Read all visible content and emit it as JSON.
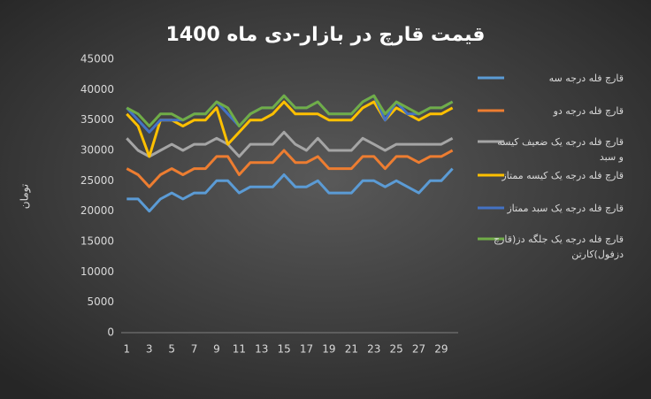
{
  "chart_data": {
    "type": "line",
    "title": "قیمت قارچ در بازار-دی ماه 1400",
    "y_label": "تومان",
    "categories": [
      1,
      null,
      3,
      null,
      5,
      null,
      7,
      null,
      9,
      null,
      11,
      null,
      13,
      null,
      15,
      null,
      17,
      null,
      19,
      null,
      21,
      null,
      23,
      null,
      25,
      null,
      27,
      null,
      29,
      null
    ],
    "ylim": [
      0,
      45000
    ],
    "yticks": [
      0,
      5000,
      10000,
      15000,
      20000,
      25000,
      30000,
      35000,
      40000,
      45000
    ],
    "grid": false,
    "legend": "right",
    "series": [
      {
        "name": "قارچ فله درجه سه",
        "color": "#5b9bd5",
        "values": [
          22000,
          22000,
          20000,
          22000,
          23000,
          22000,
          23000,
          23000,
          25000,
          25000,
          23000,
          24000,
          24000,
          24000,
          26000,
          24000,
          24000,
          25000,
          23000,
          23000,
          23000,
          25000,
          25000,
          24000,
          25000,
          24000,
          23000,
          25000,
          25000,
          27000
        ]
      },
      {
        "name": "قارچ فله درجه دو",
        "color": "#ed7d31",
        "values": [
          27000,
          26000,
          24000,
          26000,
          27000,
          26000,
          27000,
          27000,
          29000,
          29000,
          26000,
          28000,
          28000,
          28000,
          30000,
          28000,
          28000,
          29000,
          27000,
          27000,
          27000,
          29000,
          29000,
          27000,
          29000,
          29000,
          28000,
          29000,
          29000,
          30000
        ]
      },
      {
        "name": "قارچ فله درجه یک ضعیف کیسه و سبد",
        "color": "#a5a5a5",
        "values": [
          32000,
          30000,
          29000,
          30000,
          31000,
          30000,
          31000,
          31000,
          32000,
          31000,
          29000,
          31000,
          31000,
          31000,
          33000,
          31000,
          30000,
          32000,
          30000,
          30000,
          30000,
          32000,
          31000,
          30000,
          31000,
          31000,
          31000,
          31000,
          31000,
          32000
        ]
      },
      {
        "name": "قارچ فله درجه یک کیسه ممتاز",
        "color": "#ffc000",
        "values": [
          36000,
          34000,
          29000,
          35000,
          35000,
          34000,
          35000,
          35000,
          37000,
          31000,
          33000,
          35000,
          35000,
          36000,
          38000,
          36000,
          36000,
          36000,
          35000,
          35000,
          35000,
          37000,
          38000,
          35000,
          37000,
          36000,
          35000,
          36000,
          36000,
          37000
        ]
      },
      {
        "name": "قارچ فله درجه یک سبد ممتاز",
        "color": "#4472c4",
        "values": [
          37000,
          35000,
          33000,
          35000,
          35000,
          35000,
          36000,
          36000,
          38000,
          36000,
          34000,
          36000,
          37000,
          37000,
          39000,
          37000,
          37000,
          38000,
          36000,
          36000,
          36000,
          38000,
          39000,
          35000,
          38000,
          36000,
          36000,
          37000,
          37000,
          38000
        ]
      },
      {
        "name": "قارچ فله درجه یک جلگه دز(قارچ دزفول)کارتن",
        "color": "#70ad47",
        "values": [
          37000,
          36000,
          34000,
          36000,
          36000,
          35000,
          36000,
          36000,
          38000,
          37000,
          34000,
          36000,
          37000,
          37000,
          39000,
          37000,
          37000,
          38000,
          36000,
          36000,
          36000,
          38000,
          39000,
          36000,
          38000,
          37000,
          36000,
          37000,
          37000,
          38000
        ]
      }
    ]
  }
}
